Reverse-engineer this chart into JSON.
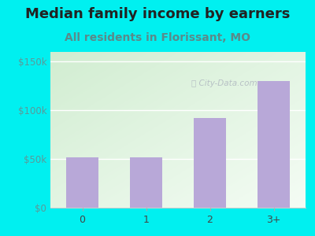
{
  "categories": [
    "0",
    "1",
    "2",
    "3+"
  ],
  "values": [
    52000,
    52000,
    92000,
    130000
  ],
  "bar_color": "#b8a8d8",
  "title": "Median family income by earners",
  "subtitle": "All residents in Florissant, MO",
  "title_fontsize": 13,
  "subtitle_fontsize": 10,
  "ylabel_ticks": [
    0,
    50000,
    100000,
    150000
  ],
  "ylabel_labels": [
    "$0",
    "$50k",
    "$100k",
    "$150k"
  ],
  "ylim": [
    0,
    160000
  ],
  "outer_bg": "#00f0f0",
  "plot_bg_color_topleft": "#d4eed4",
  "plot_bg_color_right": "#eaf4f4",
  "watermark": "ⓘ City-Data.com",
  "title_color": "#222222",
  "subtitle_color": "#5a8a8a",
  "ytick_color": "#5a9a9a",
  "xtick_color": "#444444",
  "bar_edge_color": "none",
  "watermark_color": "#aaaaaa"
}
